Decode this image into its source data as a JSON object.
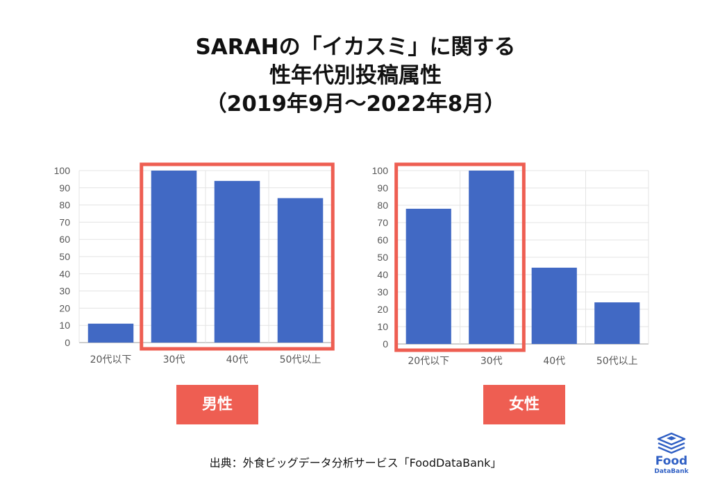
{
  "title": {
    "line1": "SARAHの「イカスミ」に関する",
    "line2": "性年代別投稿属性",
    "line3": "（2019年9月〜2022年8月）"
  },
  "chart_data": [
    {
      "type": "bar",
      "categories": [
        "20代以下",
        "30代",
        "40代",
        "50代以上"
      ],
      "values": [
        11,
        100,
        94,
        84
      ],
      "ylim": [
        0,
        100
      ],
      "yticks": [
        0,
        10,
        20,
        30,
        40,
        50,
        60,
        70,
        80,
        90,
        100
      ],
      "highlighted_categories": [
        "30代",
        "40代",
        "50代以上"
      ],
      "grid": true,
      "label": "男性"
    },
    {
      "type": "bar",
      "categories": [
        "20代以下",
        "30代",
        "40代",
        "50代以上"
      ],
      "values": [
        78,
        100,
        44,
        24
      ],
      "ylim": [
        0,
        100
      ],
      "yticks": [
        0,
        10,
        20,
        30,
        40,
        50,
        60,
        70,
        80,
        90,
        100
      ],
      "highlighted_categories": [
        "20代以下",
        "30代"
      ],
      "grid": true,
      "label": "女性"
    }
  ],
  "colors": {
    "bar": "#4169c4",
    "highlight": "#ee5e52",
    "badge": "#ee5e52",
    "gridline": "#e3e3e3",
    "axis_text": "#555555",
    "logo": "#2f5fc4"
  },
  "source": "出典：外食ビッグデータ分析サービス「FoodDataBank」",
  "logo": {
    "icon": "stacked-box-logo-icon",
    "text": "Food",
    "subtext": "DataBank"
  }
}
